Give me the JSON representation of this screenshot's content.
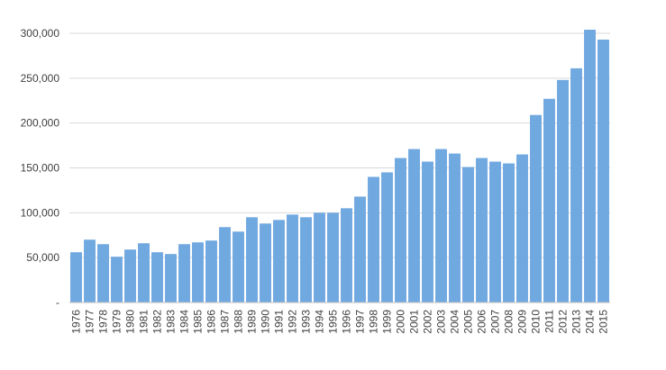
{
  "chart_data": {
    "type": "bar",
    "title": "",
    "xlabel": "",
    "ylabel": "",
    "color": "#70a8e0",
    "ylim": [
      0,
      300000
    ],
    "y_ticks": [
      0,
      50000,
      100000,
      150000,
      200000,
      250000,
      300000
    ],
    "y_tick_labels": [
      "-",
      "50,000",
      "100,000",
      "150,000",
      "200,000",
      "250,000",
      "300,000"
    ],
    "grid": true,
    "legend": "none",
    "categories": [
      "1976",
      "1977",
      "1978",
      "1979",
      "1980",
      "1981",
      "1982",
      "1983",
      "1984",
      "1985",
      "1986",
      "1987",
      "1988",
      "1989",
      "1990",
      "1991",
      "1992",
      "1993",
      "1994",
      "1995",
      "1996",
      "1997",
      "1998",
      "1999",
      "2000",
      "2001",
      "2002",
      "2003",
      "2004",
      "2005",
      "2006",
      "2007",
      "2008",
      "2009",
      "2010",
      "2011",
      "2012",
      "2013",
      "2014",
      "2015"
    ],
    "values": [
      56000,
      70000,
      65000,
      51000,
      59000,
      66000,
      56000,
      54000,
      65000,
      67000,
      69000,
      84000,
      79000,
      95000,
      88000,
      92000,
      98000,
      95000,
      100000,
      100000,
      105000,
      118000,
      140000,
      145000,
      161000,
      171000,
      157000,
      171000,
      166000,
      151000,
      161000,
      157000,
      155000,
      165000,
      209000,
      227000,
      248000,
      261000,
      304000,
      293000
    ]
  }
}
